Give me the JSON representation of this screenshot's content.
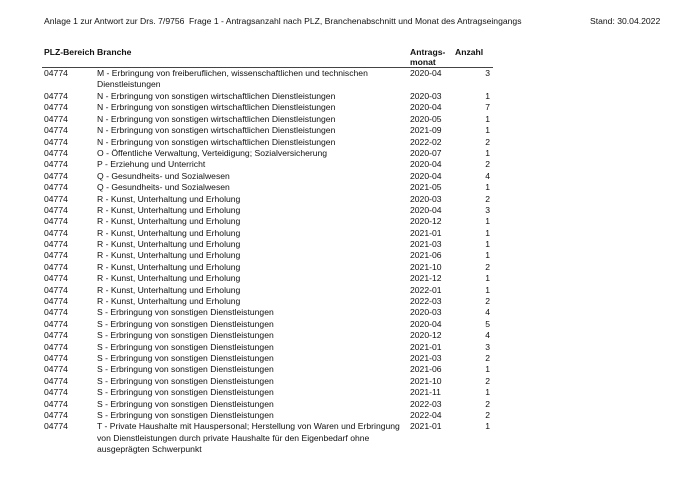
{
  "header": {
    "left": "Anlage 1 zur Antwort zur Drs. 7/9756",
    "title": "Frage 1 - Antragsanzahl nach PLZ, Branchenabschnitt und Monat des Antragseingangs",
    "stand": "Stand: 30.04.2022"
  },
  "table": {
    "columns": [
      "PLZ-Bereich",
      "Branche",
      "Antrags-",
      "monat",
      "Anzahl"
    ],
    "rows": [
      [
        "04774",
        "M - Erbringung von freiberuflichen, wissenschaftlichen und technischen Dienstleistungen",
        "2020-04",
        "3"
      ],
      [
        "04774",
        "N - Erbringung von sonstigen wirtschaftlichen Dienstleistungen",
        "2020-03",
        "1"
      ],
      [
        "04774",
        "N - Erbringung von sonstigen wirtschaftlichen Dienstleistungen",
        "2020-04",
        "7"
      ],
      [
        "04774",
        "N - Erbringung von sonstigen wirtschaftlichen Dienstleistungen",
        "2020-05",
        "1"
      ],
      [
        "04774",
        "N - Erbringung von sonstigen wirtschaftlichen Dienstleistungen",
        "2021-09",
        "1"
      ],
      [
        "04774",
        "N - Erbringung von sonstigen wirtschaftlichen Dienstleistungen",
        "2022-02",
        "2"
      ],
      [
        "04774",
        "O - Öffentliche Verwaltung, Verteidigung; Sozialversicherung",
        "2020-07",
        "1"
      ],
      [
        "04774",
        "P - Erziehung und Unterricht",
        "2020-04",
        "2"
      ],
      [
        "04774",
        "Q - Gesundheits- und Sozialwesen",
        "2020-04",
        "4"
      ],
      [
        "04774",
        "Q - Gesundheits- und Sozialwesen",
        "2021-05",
        "1"
      ],
      [
        "04774",
        "R - Kunst, Unterhaltung und Erholung",
        "2020-03",
        "2"
      ],
      [
        "04774",
        "R - Kunst, Unterhaltung und Erholung",
        "2020-04",
        "3"
      ],
      [
        "04774",
        "R - Kunst, Unterhaltung und Erholung",
        "2020-12",
        "1"
      ],
      [
        "04774",
        "R - Kunst, Unterhaltung und Erholung",
        "2021-01",
        "1"
      ],
      [
        "04774",
        "R - Kunst, Unterhaltung und Erholung",
        "2021-03",
        "1"
      ],
      [
        "04774",
        "R - Kunst, Unterhaltung und Erholung",
        "2021-06",
        "1"
      ],
      [
        "04774",
        "R - Kunst, Unterhaltung und Erholung",
        "2021-10",
        "2"
      ],
      [
        "04774",
        "R - Kunst, Unterhaltung und Erholung",
        "2021-12",
        "1"
      ],
      [
        "04774",
        "R - Kunst, Unterhaltung und Erholung",
        "2022-01",
        "1"
      ],
      [
        "04774",
        "R - Kunst, Unterhaltung und Erholung",
        "2022-03",
        "2"
      ],
      [
        "04774",
        "S - Erbringung von sonstigen Dienstleistungen",
        "2020-03",
        "4"
      ],
      [
        "04774",
        "S - Erbringung von sonstigen Dienstleistungen",
        "2020-04",
        "5"
      ],
      [
        "04774",
        "S - Erbringung von sonstigen Dienstleistungen",
        "2020-12",
        "4"
      ],
      [
        "04774",
        "S - Erbringung von sonstigen Dienstleistungen",
        "2021-01",
        "3"
      ],
      [
        "04774",
        "S - Erbringung von sonstigen Dienstleistungen",
        "2021-03",
        "2"
      ],
      [
        "04774",
        "S - Erbringung von sonstigen Dienstleistungen",
        "2021-06",
        "1"
      ],
      [
        "04774",
        "S - Erbringung von sonstigen Dienstleistungen",
        "2021-10",
        "2"
      ],
      [
        "04774",
        "S - Erbringung von sonstigen Dienstleistungen",
        "2021-11",
        "1"
      ],
      [
        "04774",
        "S - Erbringung von sonstigen Dienstleistungen",
        "2022-03",
        "2"
      ],
      [
        "04774",
        "S - Erbringung von sonstigen Dienstleistungen",
        "2022-04",
        "2"
      ],
      [
        "04774",
        "T - Private Haushalte mit Hauspersonal; Herstellung von Waren und Erbringung von Dienstleistungen durch private Haushalte für den Eigenbedarf ohne ausgeprägten Schwerpunkt",
        "2021-01",
        "1"
      ]
    ]
  }
}
